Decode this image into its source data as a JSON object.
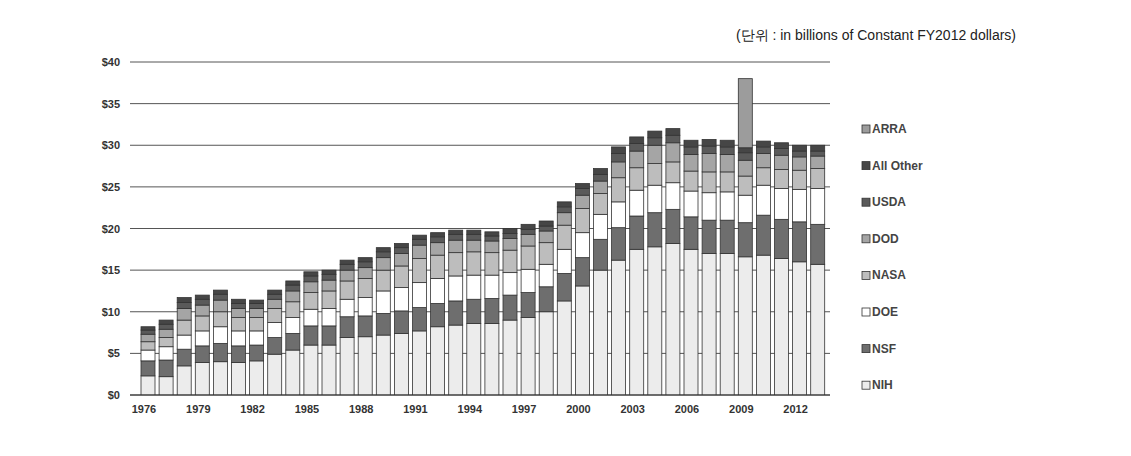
{
  "chart_data": {
    "type": "bar",
    "subtitle": "(단위 : in billions of Constant FY2012 dollars)",
    "stacked": true,
    "grid": true,
    "legend": "right",
    "categories": [
      "1976",
      null,
      null,
      "1979",
      null,
      null,
      "1982",
      null,
      null,
      "1985",
      null,
      null,
      "1988",
      null,
      null,
      "1991",
      null,
      null,
      "1994",
      null,
      null,
      "1997",
      null,
      null,
      "2000",
      null,
      null,
      "2003",
      null,
      null,
      "2006",
      null,
      null,
      "2009",
      null,
      null,
      "2012",
      null
    ],
    "ylim": [
      0,
      40
    ],
    "yticks": [
      {
        "value": 0,
        "label": "$0"
      },
      {
        "value": 5,
        "label": "$5"
      },
      {
        "value": 10,
        "label": "$10"
      },
      {
        "value": 15,
        "label": "$15"
      },
      {
        "value": 20,
        "label": "$20"
      },
      {
        "value": 25,
        "label": "$25"
      },
      {
        "value": 30,
        "label": "$30"
      },
      {
        "value": 35,
        "label": "$35"
      },
      {
        "value": 40,
        "label": "$40"
      }
    ],
    "series": [
      {
        "name": "NIH",
        "color": "#ececec",
        "values": [
          2.3,
          2.2,
          3.5,
          3.9,
          4.0,
          3.9,
          4.1,
          4.9,
          5.4,
          6.0,
          6.0,
          6.9,
          7.0,
          7.2,
          7.4,
          7.7,
          8.2,
          8.4,
          8.6,
          8.6,
          9.0,
          9.3,
          10.0,
          11.3,
          13.1,
          15.0,
          16.2,
          17.5,
          17.8,
          18.2,
          17.5,
          17.0,
          17.0,
          16.6,
          16.8,
          16.4,
          16.0,
          15.7
        ]
      },
      {
        "name": "NSF",
        "color": "#6e6e6e",
        "values": [
          1.8,
          2.0,
          2.0,
          2.0,
          2.2,
          2.0,
          1.9,
          2.0,
          2.0,
          2.3,
          2.3,
          2.5,
          2.5,
          2.6,
          2.7,
          2.8,
          2.8,
          2.9,
          2.9,
          3.0,
          3.0,
          3.0,
          3.0,
          3.3,
          3.4,
          3.7,
          3.9,
          4.0,
          4.1,
          4.1,
          3.9,
          4.0,
          4.0,
          4.1,
          4.8,
          4.7,
          4.8,
          4.8
        ]
      },
      {
        "name": "DOE",
        "color": "#ffffff",
        "values": [
          1.3,
          1.6,
          1.7,
          1.8,
          2.0,
          1.8,
          1.7,
          1.8,
          1.9,
          2.0,
          2.1,
          2.1,
          2.2,
          2.7,
          2.8,
          3.0,
          3.0,
          3.0,
          2.9,
          2.8,
          2.7,
          2.8,
          2.7,
          2.9,
          3.0,
          3.0,
          3.1,
          3.1,
          3.3,
          3.2,
          3.1,
          3.3,
          3.4,
          3.3,
          3.6,
          3.7,
          3.9,
          4.3
        ]
      },
      {
        "name": "NASA",
        "color": "#bdbdbd",
        "values": [
          1.0,
          1.1,
          1.8,
          1.8,
          1.8,
          1.6,
          1.6,
          1.7,
          1.9,
          2.0,
          2.1,
          2.2,
          2.3,
          2.5,
          2.6,
          2.9,
          2.8,
          2.8,
          2.8,
          2.7,
          2.7,
          2.8,
          2.6,
          2.9,
          2.9,
          2.5,
          2.9,
          2.7,
          2.6,
          2.5,
          2.4,
          2.5,
          2.4,
          2.3,
          2.1,
          2.3,
          2.3,
          2.4
        ]
      },
      {
        "name": "DOD",
        "color": "#a5a5a5",
        "values": [
          0.9,
          1.0,
          1.4,
          1.3,
          1.4,
          1.1,
          1.1,
          1.1,
          1.3,
          1.3,
          1.3,
          1.3,
          1.3,
          1.5,
          1.5,
          1.6,
          1.5,
          1.5,
          1.4,
          1.4,
          1.4,
          1.4,
          1.4,
          1.5,
          1.6,
          1.5,
          1.9,
          2.0,
          2.2,
          2.3,
          2.0,
          2.2,
          2.1,
          1.9,
          1.7,
          1.7,
          1.6,
          1.5
        ]
      },
      {
        "name": "USDA",
        "color": "#5a5a5a",
        "values": [
          0.5,
          0.6,
          0.7,
          0.7,
          0.7,
          0.6,
          0.6,
          0.6,
          0.7,
          0.7,
          0.7,
          0.7,
          0.7,
          0.7,
          0.7,
          0.7,
          0.7,
          0.7,
          0.7,
          0.6,
          0.6,
          0.6,
          0.6,
          0.7,
          0.8,
          0.8,
          1.0,
          0.9,
          0.9,
          0.9,
          0.9,
          0.9,
          0.9,
          0.9,
          0.8,
          0.8,
          0.7,
          0.6
        ]
      },
      {
        "name": "All Other",
        "color": "#464646",
        "values": [
          0.4,
          0.5,
          0.6,
          0.5,
          0.5,
          0.5,
          0.4,
          0.5,
          0.5,
          0.5,
          0.5,
          0.5,
          0.5,
          0.5,
          0.5,
          0.5,
          0.5,
          0.5,
          0.5,
          0.5,
          0.6,
          0.6,
          0.6,
          0.6,
          0.6,
          0.7,
          0.8,
          0.8,
          0.8,
          0.8,
          0.8,
          0.8,
          0.8,
          0.6,
          0.7,
          0.7,
          0.7,
          0.7
        ]
      },
      {
        "name": "ARRA",
        "color": "#9c9c9c",
        "values": [
          null,
          null,
          null,
          null,
          null,
          null,
          null,
          null,
          null,
          null,
          null,
          null,
          null,
          null,
          null,
          null,
          null,
          null,
          null,
          null,
          null,
          null,
          null,
          null,
          null,
          null,
          null,
          null,
          null,
          null,
          null,
          null,
          null,
          8.3,
          null,
          null,
          null,
          null
        ]
      }
    ]
  }
}
